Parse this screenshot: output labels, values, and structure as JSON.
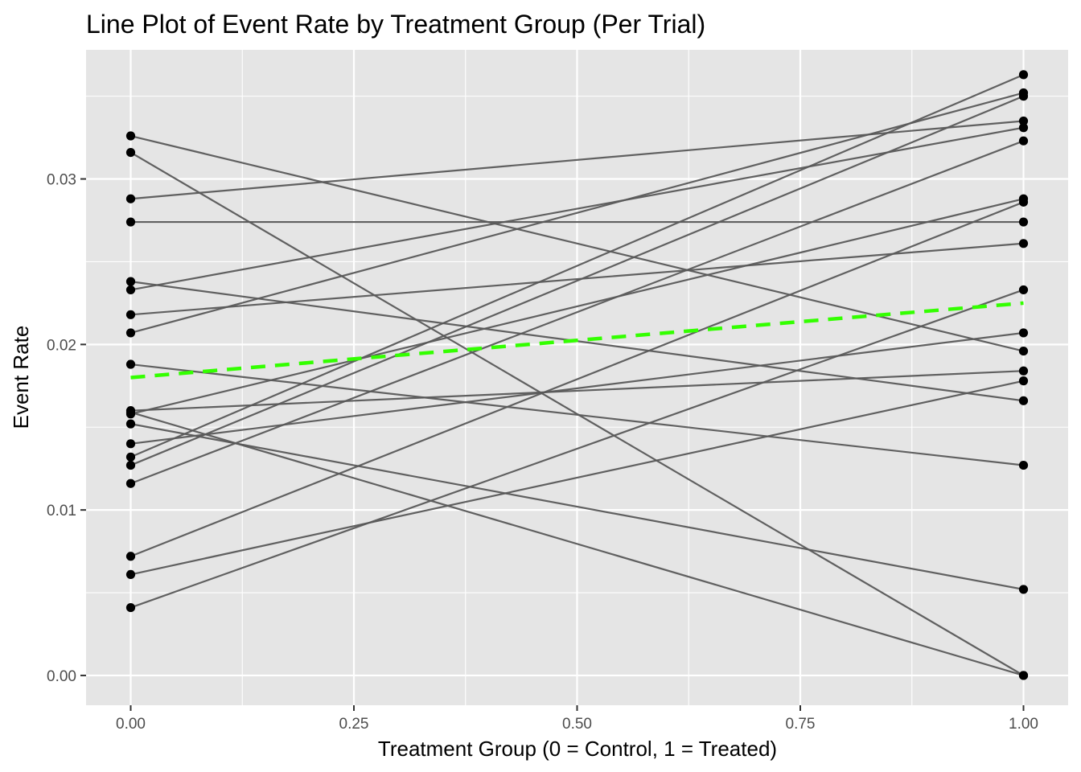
{
  "chart_data": {
    "type": "line",
    "title": "Line Plot of Event Rate by Treatment Group (Per Trial)",
    "xlabel": "Treatment Group (0 = Control, 1 = Treated)",
    "ylabel": "Event Rate",
    "xlim": [
      -0.05,
      1.05
    ],
    "ylim": [
      -0.0018,
      0.0378
    ],
    "x_ticks": [
      0,
      0.25,
      0.5,
      0.75,
      1
    ],
    "x_tick_labels": [
      "0.00",
      "0.25",
      "0.50",
      "0.75",
      "1.00"
    ],
    "y_ticks": [
      0,
      0.01,
      0.02,
      0.03
    ],
    "y_tick_labels": [
      "0.00",
      "0.01",
      "0.02",
      "0.03"
    ],
    "x_minor_ticks": [
      0.125,
      0.375,
      0.625,
      0.875
    ],
    "y_minor_ticks": [
      0.005,
      0.015,
      0.025,
      0.035
    ],
    "colors": {
      "panel_background": "#e5e5e5",
      "grid": "#ffffff",
      "trial_line": "#595959",
      "point": "#000000",
      "mean_line": "#33ff00"
    },
    "trials": [
      {
        "control": 0.0326,
        "treated": 0.0196
      },
      {
        "control": 0.0316,
        "treated": 0.0
      },
      {
        "control": 0.0288,
        "treated": 0.0335
      },
      {
        "control": 0.0274,
        "treated": 0.0274
      },
      {
        "control": 0.0238,
        "treated": 0.0166
      },
      {
        "control": 0.0233,
        "treated": 0.0331
      },
      {
        "control": 0.0218,
        "treated": 0.0261
      },
      {
        "control": 0.0207,
        "treated": 0.0352
      },
      {
        "control": 0.0188,
        "treated": 0.0127
      },
      {
        "control": 0.016,
        "treated": 0.0184
      },
      {
        "control": 0.0159,
        "treated": 0.0
      },
      {
        "control": 0.0152,
        "treated": 0.0052
      },
      {
        "control": 0.014,
        "treated": 0.0207
      },
      {
        "control": 0.0132,
        "treated": 0.0363
      },
      {
        "control": 0.0127,
        "treated": 0.035
      },
      {
        "control": 0.0116,
        "treated": 0.0323
      },
      {
        "control": 0.0072,
        "treated": 0.0286
      },
      {
        "control": 0.0061,
        "treated": 0.0178
      },
      {
        "control": 0.0041,
        "treated": 0.0233
      },
      {
        "control": 0.0158,
        "treated": 0.0288
      }
    ],
    "mean_line": {
      "control": 0.018,
      "treated": 0.0225
    }
  }
}
